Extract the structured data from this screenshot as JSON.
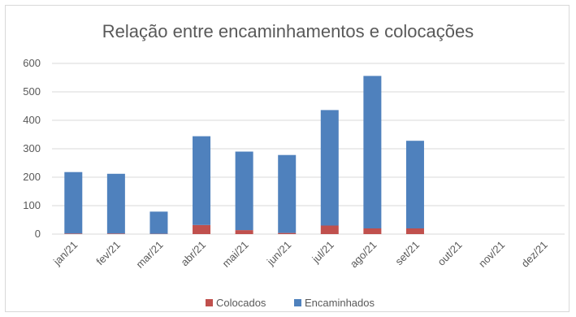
{
  "chart_data": {
    "type": "bar",
    "stacked": true,
    "title": "Relação entre encaminhamentos e colocações",
    "categories": [
      "jan/21",
      "fev/21",
      "mar/21",
      "abr/21",
      "mai/21",
      "jun/21",
      "jul/21",
      "ago/21",
      "set/21",
      "out/21",
      "nov/21",
      "dez/21"
    ],
    "series": [
      {
        "name": "Colocados",
        "color": "#c0504d",
        "values": [
          2,
          2,
          1,
          32,
          14,
          4,
          30,
          20,
          20,
          0,
          0,
          0
        ]
      },
      {
        "name": "Encaminhados",
        "color": "#4f81bd",
        "values": [
          216,
          210,
          78,
          312,
          276,
          274,
          406,
          536,
          308,
          0,
          0,
          0
        ]
      }
    ],
    "yticks": [
      0,
      100,
      200,
      300,
      400,
      500,
      600
    ],
    "ylim": [
      0,
      600
    ],
    "grid": true,
    "legend_position": "bottom"
  }
}
